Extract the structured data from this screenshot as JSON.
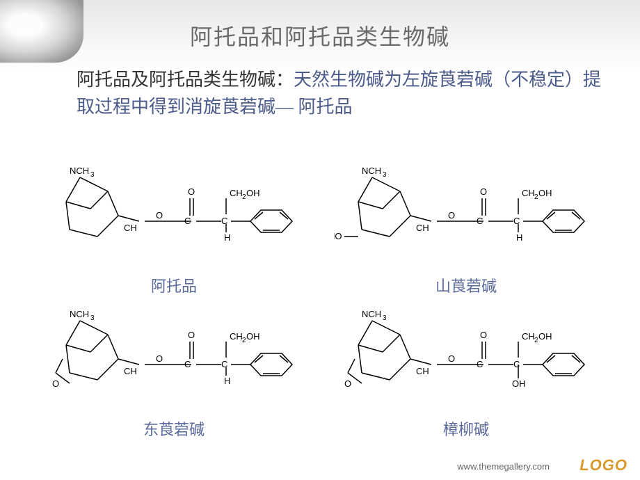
{
  "slide": {
    "title": "阿托品和阿托品类生物碱",
    "lead": "阿托品及阿托品类生物碱：",
    "desc": "天然生物碱为左旋莨菪碱（不稳定）提取过程中得到消旋莨菪碱— 阿托品",
    "structures": [
      {
        "label": "阿托品",
        "tropane_n": "NCH",
        "tropane_sub": "3",
        "has_epoxide": false,
        "has_tropane_oh": false,
        "has_side_oh": false
      },
      {
        "label": "山莨菪碱",
        "tropane_n": "NCH",
        "tropane_sub": "3",
        "has_epoxide": false,
        "has_tropane_oh": true,
        "has_side_oh": false
      },
      {
        "label": "东莨菪碱",
        "tropane_n": "NCH",
        "tropane_sub": "3",
        "has_epoxide": true,
        "has_tropane_oh": false,
        "has_side_oh": false
      },
      {
        "label": "樟柳碱",
        "tropane_n": "NCH",
        "tropane_sub": "3",
        "has_epoxide": true,
        "has_tropane_oh": false,
        "has_side_oh": true
      }
    ],
    "colors": {
      "title": "#6a6a6a",
      "lead": "#333333",
      "desc": "#4a5a8a",
      "label": "#5a6a9a",
      "logo": "#d99a2b"
    },
    "footer": {
      "url": "www.themegallery.com",
      "logo": "LOGO"
    }
  }
}
